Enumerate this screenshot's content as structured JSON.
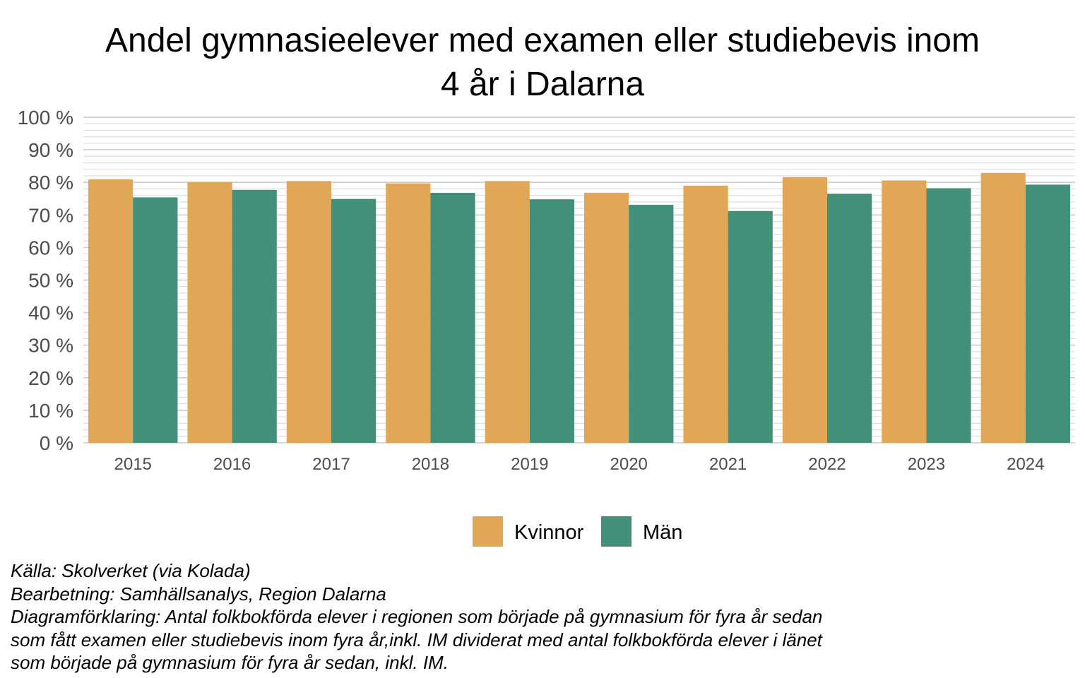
{
  "chart_data": {
    "type": "bar",
    "title_lines": [
      "Andel gymnasieelever med examen eller studiebevis inom",
      "4 år i Dalarna"
    ],
    "categories": [
      "2015",
      "2016",
      "2017",
      "2018",
      "2019",
      "2020",
      "2021",
      "2022",
      "2023",
      "2024"
    ],
    "series": [
      {
        "name": "Kvinnor",
        "color": "#E1A756",
        "values": [
          80.9,
          80.1,
          80.4,
          79.7,
          80.4,
          76.8,
          79.0,
          81.6,
          80.6,
          82.9
        ]
      },
      {
        "name": "Män",
        "color": "#43907A",
        "values": [
          75.4,
          77.7,
          74.9,
          76.8,
          74.8,
          73.1,
          71.2,
          76.5,
          78.2,
          79.3
        ]
      }
    ],
    "ylim": [
      0,
      100
    ],
    "yticks": [
      0,
      10,
      20,
      30,
      40,
      50,
      60,
      70,
      80,
      90,
      100
    ],
    "ytick_labels": [
      "0 %",
      "10 %",
      "20 %",
      "30 %",
      "40 %",
      "50 %",
      "60 %",
      "70 %",
      "80 %",
      "90 %",
      "100 %"
    ],
    "grid": true,
    "legend_position": "bottom"
  },
  "caption": {
    "lines": [
      "Källa: Skolverket (via Kolada)",
      "Bearbetning: Samhällsanalys, Region Dalarna",
      "Diagramförklaring: Antal folkbokförda elever i regionen som började på gymnasium för fyra år sedan",
      "som fått examen eller studiebevis inom fyra år,inkl. IM dividerat med antal folkbokförda elever i länet",
      "som började på gymnasium för fyra år sedan, inkl. IM."
    ]
  }
}
